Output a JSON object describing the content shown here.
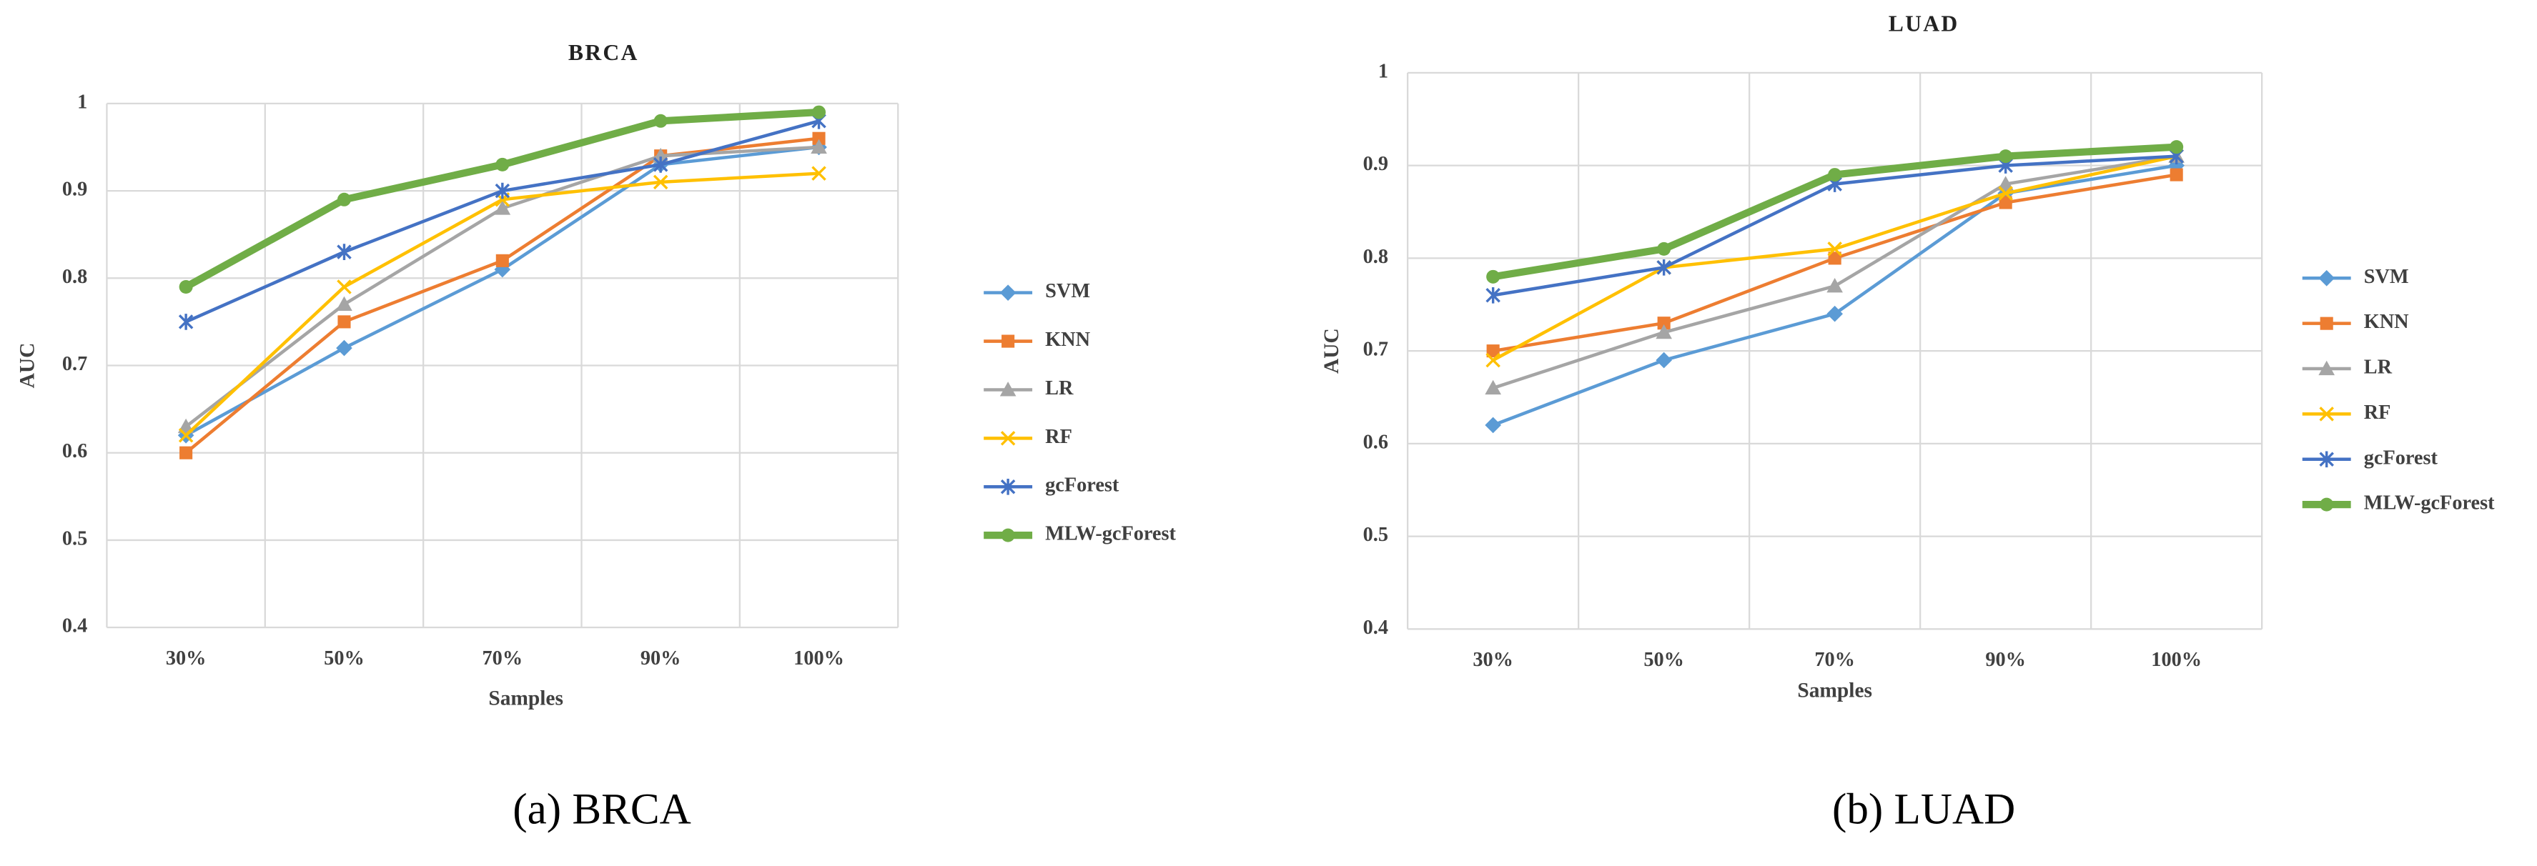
{
  "chart_data": [
    {
      "type": "line",
      "title": "BRCA",
      "x_label": "Samples",
      "y_label": "AUC",
      "caption": "(a) BRCA",
      "categories": [
        "30%",
        "50%",
        "70%",
        "90%",
        "100%"
      ],
      "ylim": [
        0.4,
        1
      ],
      "yticks": [
        0.4,
        0.5,
        0.6,
        0.7,
        0.8,
        0.9,
        1
      ],
      "grid": true,
      "legend": "right",
      "series": [
        {
          "name": "SVM",
          "color": "#5b9bd5",
          "marker": "diamond",
          "values": [
            0.62,
            0.72,
            0.81,
            0.93,
            0.95
          ]
        },
        {
          "name": "KNN",
          "color": "#ed7d31",
          "marker": "square",
          "values": [
            0.6,
            0.75,
            0.82,
            0.94,
            0.96
          ]
        },
        {
          "name": "LR",
          "color": "#a5a5a5",
          "marker": "triangle",
          "values": [
            0.63,
            0.77,
            0.88,
            0.94,
            0.95
          ]
        },
        {
          "name": "RF",
          "color": "#ffc000",
          "marker": "x",
          "values": [
            0.62,
            0.79,
            0.89,
            0.91,
            0.92
          ]
        },
        {
          "name": "gcForest",
          "color": "#4472c4",
          "marker": "star",
          "values": [
            0.75,
            0.83,
            0.9,
            0.93,
            0.98
          ]
        },
        {
          "name": "MLW-gcForest",
          "color": "#70ad47",
          "marker": "circle",
          "values": [
            0.79,
            0.89,
            0.93,
            0.98,
            0.99
          ]
        }
      ]
    },
    {
      "type": "line",
      "title": "LUAD",
      "x_label": "Samples",
      "y_label": "AUC",
      "caption": "(b) LUAD",
      "categories": [
        "30%",
        "50%",
        "70%",
        "90%",
        "100%"
      ],
      "ylim": [
        0.4,
        1
      ],
      "yticks": [
        0.4,
        0.5,
        0.6,
        0.7,
        0.8,
        0.9,
        1
      ],
      "grid": true,
      "legend": "right",
      "series": [
        {
          "name": "SVM",
          "color": "#5b9bd5",
          "marker": "diamond",
          "values": [
            0.62,
            0.69,
            0.74,
            0.87,
            0.9
          ]
        },
        {
          "name": "KNN",
          "color": "#ed7d31",
          "marker": "square",
          "values": [
            0.7,
            0.73,
            0.8,
            0.86,
            0.89
          ]
        },
        {
          "name": "LR",
          "color": "#a5a5a5",
          "marker": "triangle",
          "values": [
            0.66,
            0.72,
            0.77,
            0.88,
            0.91
          ]
        },
        {
          "name": "RF",
          "color": "#ffc000",
          "marker": "x",
          "values": [
            0.69,
            0.79,
            0.81,
            0.87,
            0.91
          ]
        },
        {
          "name": "gcForest",
          "color": "#4472c4",
          "marker": "star",
          "values": [
            0.76,
            0.79,
            0.88,
            0.9,
            0.91
          ]
        },
        {
          "name": "MLW-gcForest",
          "color": "#70ad47",
          "marker": "circle",
          "values": [
            0.78,
            0.81,
            0.89,
            0.91,
            0.92
          ]
        }
      ]
    }
  ]
}
